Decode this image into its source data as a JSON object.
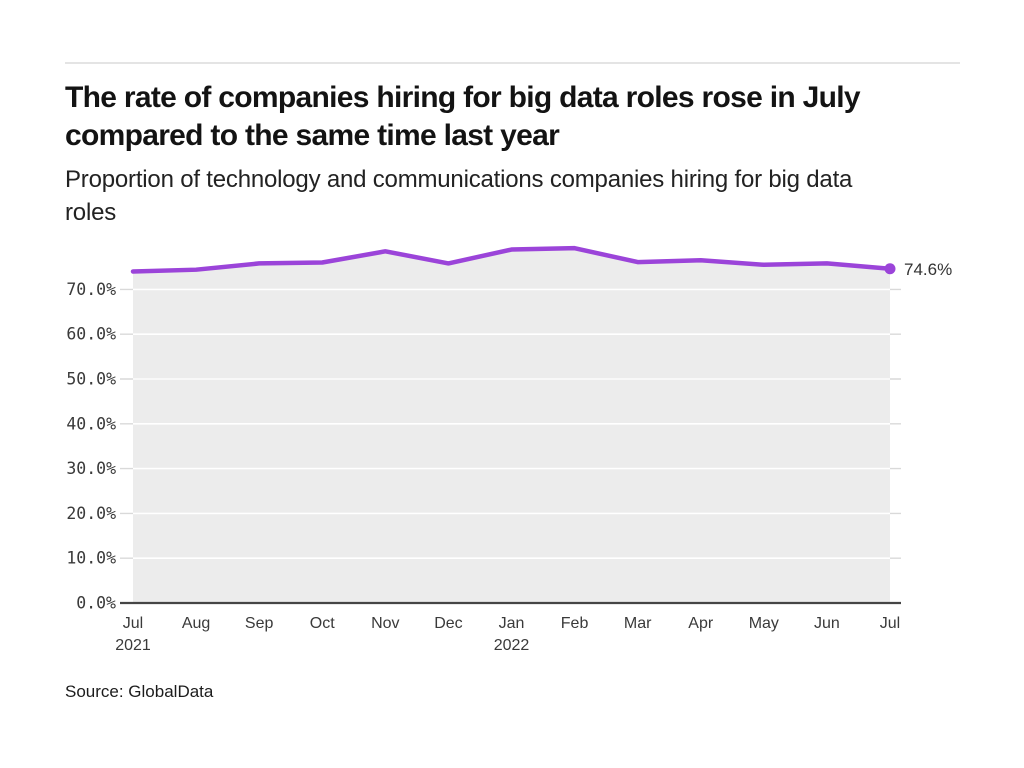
{
  "header": {
    "title": "The rate of companies hiring for big data roles rose in July compared to the same time last year",
    "title_lines": [
      "The rate of companies hiring for big data roles rose in July",
      "compared to the same time last year"
    ],
    "subtitle": "Proportion of technology and communications companies hiring for big data roles",
    "subtitle_lines": [
      "Proportion of technology and communications companies hiring for big data",
      "roles"
    ]
  },
  "chart_data": {
    "type": "line",
    "title": "The rate of companies hiring for big data roles rose in July compared to the same time last year",
    "subtitle": "Proportion of technology and communications companies hiring for big data roles",
    "categories": [
      "Jul 2021",
      "Aug",
      "Sep",
      "Oct",
      "Nov",
      "Dec",
      "Jan 2022",
      "Feb",
      "Mar",
      "Apr",
      "May",
      "Jun",
      "Jul"
    ],
    "months": [
      "Jul",
      "Aug",
      "Sep",
      "Oct",
      "Nov",
      "Dec",
      "Jan",
      "Feb",
      "Mar",
      "Apr",
      "May",
      "Jun",
      "Jul"
    ],
    "years": [
      {
        "index": 0,
        "label": "2021"
      },
      {
        "index": 6,
        "label": "2022"
      }
    ],
    "series": [
      {
        "name": "Proportion of technology and communications companies hiring for big data roles",
        "values": [
          74.0,
          74.4,
          75.8,
          76.0,
          78.5,
          75.8,
          78.9,
          79.2,
          76.1,
          76.5,
          75.5,
          75.8,
          74.6
        ]
      }
    ],
    "end_label": "74.6%",
    "yticks": [
      "0.0%",
      "10.0%",
      "20.0%",
      "30.0%",
      "40.0%",
      "50.0%",
      "60.0%",
      "70.0%"
    ],
    "ytick_values": [
      0,
      10,
      20,
      30,
      40,
      50,
      60,
      70
    ],
    "ylim": [
      0,
      82
    ],
    "grid": true,
    "legend": "none",
    "colors": {
      "line": "#9b44d9",
      "marker": "#9b44d9",
      "area_fill": "#ececec",
      "grid_inner": "#ffffff",
      "grid_outer": "#d9d9d9",
      "axis_line": "#454545",
      "tick_text": "#3a3a3a"
    }
  },
  "footer": {
    "source": "Source: GlobalData"
  }
}
